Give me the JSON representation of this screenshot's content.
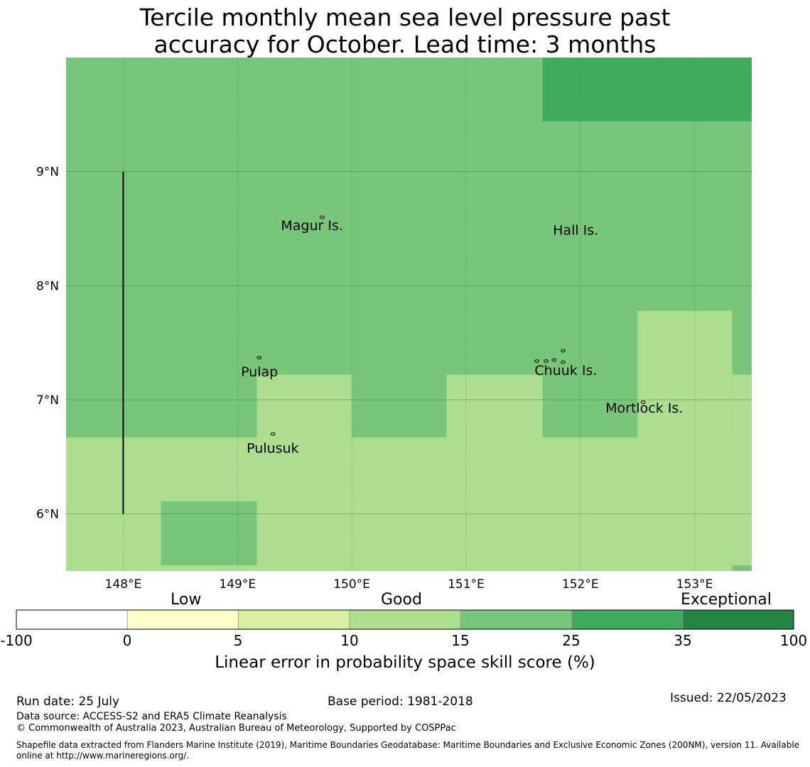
{
  "title": {
    "line1": "Tercile monthly mean sea level pressure past",
    "line2": "accuracy for October. Lead time: 3 months"
  },
  "map": {
    "lat_range": [
      5.5,
      10.0
    ],
    "lon_range": [
      147.5,
      153.5
    ],
    "lat_ticks": [
      {
        "value": 9,
        "label": "9°N"
      },
      {
        "value": 8,
        "label": "8°N"
      },
      {
        "value": 7,
        "label": "7°N"
      },
      {
        "value": 6,
        "label": "6°N"
      }
    ],
    "lon_ticks": [
      {
        "value": 148,
        "label": "148°E"
      },
      {
        "value": 149,
        "label": "149°E"
      },
      {
        "value": 150,
        "label": "150°E"
      },
      {
        "value": 151,
        "label": "151°E"
      },
      {
        "value": 152,
        "label": "152°E"
      },
      {
        "value": 153,
        "label": "153°E"
      }
    ],
    "background_color": "#78c679",
    "cells": [
      {
        "lon": [
          151.67,
          153.5
        ],
        "lat": [
          9.44,
          10.0
        ],
        "color": "#41ab5d"
      },
      {
        "lon": [
          147.5,
          153.5
        ],
        "lat": [
          5.5,
          6.67
        ],
        "color": "#addd8e"
      },
      {
        "lon": [
          149.17,
          150.0
        ],
        "lat": [
          6.67,
          7.22
        ],
        "color": "#addd8e"
      },
      {
        "lon": [
          150.83,
          151.67
        ],
        "lat": [
          6.67,
          7.22
        ],
        "color": "#addd8e"
      },
      {
        "lon": [
          152.5,
          153.33
        ],
        "lat": [
          6.67,
          7.78
        ],
        "color": "#addd8e"
      },
      {
        "lon": [
          153.33,
          153.5
        ],
        "lat": [
          6.67,
          7.22
        ],
        "color": "#addd8e"
      },
      {
        "lon": [
          150.0,
          150.83
        ],
        "lat": [
          6.67,
          6.67
        ],
        "color": "#78c679"
      },
      {
        "lon": [
          148.33,
          149.17
        ],
        "lat": [
          5.55,
          6.11
        ],
        "color": "#78c679"
      },
      {
        "lon": [
          153.33,
          153.5
        ],
        "lat": [
          5.5,
          5.55
        ],
        "color": "#78c679"
      }
    ],
    "boundary_line": {
      "lon": 148.0,
      "lat": [
        6.0,
        9.0
      ]
    },
    "places": [
      {
        "name": "Magur Is.",
        "lon": 149.38,
        "lat": 8.53
      },
      {
        "name": "Hall Is.",
        "lon": 151.76,
        "lat": 8.49
      },
      {
        "name": "Pulap",
        "lon": 149.03,
        "lat": 7.25
      },
      {
        "name": "Chuuk Is.",
        "lon": 151.6,
        "lat": 7.26
      },
      {
        "name": "Mortlock Is.",
        "lon": 152.22,
        "lat": 6.93
      },
      {
        "name": "Pulusuk",
        "lon": 149.08,
        "lat": 6.58
      }
    ],
    "islands": [
      {
        "lon": 149.74,
        "lat": 8.6
      },
      {
        "lon": 149.19,
        "lat": 7.37
      },
      {
        "lon": 149.31,
        "lat": 6.7
      },
      {
        "lon": 151.85,
        "lat": 7.43
      },
      {
        "lon": 151.62,
        "lat": 7.34
      },
      {
        "lon": 151.7,
        "lat": 7.34
      },
      {
        "lon": 151.77,
        "lat": 7.35
      },
      {
        "lon": 151.85,
        "lat": 7.33
      },
      {
        "lon": 152.55,
        "lat": 6.98
      }
    ]
  },
  "colorbar": {
    "categories": [
      "Low",
      "Good",
      "Exceptional"
    ],
    "bins": [
      {
        "from": "-100",
        "to": "0",
        "color": "#ffffff"
      },
      {
        "from": "0",
        "to": "5",
        "color": "#ffffcc"
      },
      {
        "from": "5",
        "to": "10",
        "color": "#d9f0a3"
      },
      {
        "from": "10",
        "to": "15",
        "color": "#addd8e"
      },
      {
        "from": "15",
        "to": "25",
        "color": "#78c679"
      },
      {
        "from": "25",
        "to": "35",
        "color": "#41ab5d"
      },
      {
        "from": "35",
        "to": "100",
        "color": "#238443"
      }
    ],
    "ticks": [
      "-100",
      "0",
      "5",
      "10",
      "15",
      "25",
      "35",
      "100"
    ],
    "label": "Linear error in probability space skill score (%)"
  },
  "footer": {
    "run_date": "Run date: 25 July",
    "base_period": "Base period: 1981-2018",
    "issued": "Issued: 22/05/2023",
    "data_source": "Data source: ACCESS-S2 and ERA5 Climate Reanalysis",
    "copyright": "© Commonwealth of Australia 2023, Australian Bureau of Meteorology, Supported by COSPPac",
    "shapefile_line1": "Shapefile data extracted from Flanders Marine Institute (2019), Maritime Boundaries Geodatabase: Maritime Boundaries and Exclusive Economic Zones (200NM), version 11. Available",
    "shapefile_line2": "online at http://www.marineregions.org/."
  }
}
